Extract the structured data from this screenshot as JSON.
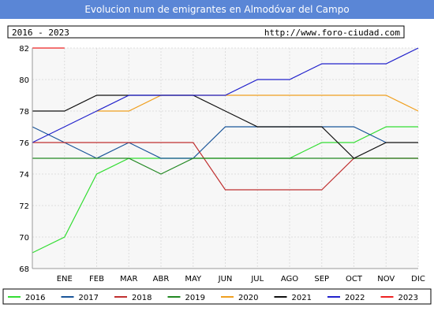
{
  "header": {
    "title": "Evolucion num de emigrantes en Almodóvar del Campo",
    "period": "2016 - 2023",
    "url": "http://www.foro-ciudad.com"
  },
  "colors": {
    "title_bar": "#5a86d6",
    "plot_bg": "#f7f7f7",
    "grid": "#dddddd"
  },
  "chart_data": {
    "type": "line",
    "title": "Evolucion num de emigrantes en Almodóvar del Campo",
    "categories": [
      "",
      "ENE",
      "FEB",
      "MAR",
      "ABR",
      "MAY",
      "JUN",
      "JUL",
      "AGO",
      "SEP",
      "OCT",
      "NOV",
      "DIC"
    ],
    "ylim": [
      68,
      82
    ],
    "yticks": [
      68,
      70,
      72,
      74,
      76,
      78,
      80,
      82
    ],
    "grid": true,
    "legend_position": "bottom",
    "series": [
      {
        "name": "2016",
        "color": "#33dd33",
        "values": [
          69,
          70,
          74,
          75,
          75,
          75,
          75,
          75,
          75,
          76,
          76,
          77,
          77
        ]
      },
      {
        "name": "2017",
        "color": "#1a5599",
        "values": [
          77,
          76,
          75,
          76,
          75,
          75,
          77,
          77,
          77,
          77,
          77,
          76,
          null
        ]
      },
      {
        "name": "2018",
        "color": "#c03030",
        "values": [
          76,
          76,
          76,
          76,
          76,
          76,
          73,
          73,
          73,
          73,
          75,
          75,
          75
        ]
      },
      {
        "name": "2019",
        "color": "#228822",
        "values": [
          75,
          75,
          75,
          75,
          74,
          75,
          75,
          75,
          75,
          75,
          75,
          75,
          75
        ]
      },
      {
        "name": "2020",
        "color": "#f0a020",
        "values": [
          null,
          null,
          78,
          78,
          79,
          79,
          79,
          79,
          79,
          79,
          79,
          79,
          78
        ]
      },
      {
        "name": "2021",
        "color": "#111111",
        "values": [
          78,
          78,
          79,
          79,
          79,
          79,
          78,
          77,
          77,
          77,
          75,
          76,
          76
        ]
      },
      {
        "name": "2022",
        "color": "#2222cc",
        "values": [
          76,
          77,
          78,
          79,
          79,
          79,
          79,
          80,
          80,
          81,
          81,
          81,
          82
        ]
      },
      {
        "name": "2023",
        "color": "#ee2222",
        "values": [
          82,
          82,
          null,
          null,
          null,
          null,
          null,
          null,
          null,
          null,
          null,
          null,
          null
        ]
      }
    ]
  }
}
